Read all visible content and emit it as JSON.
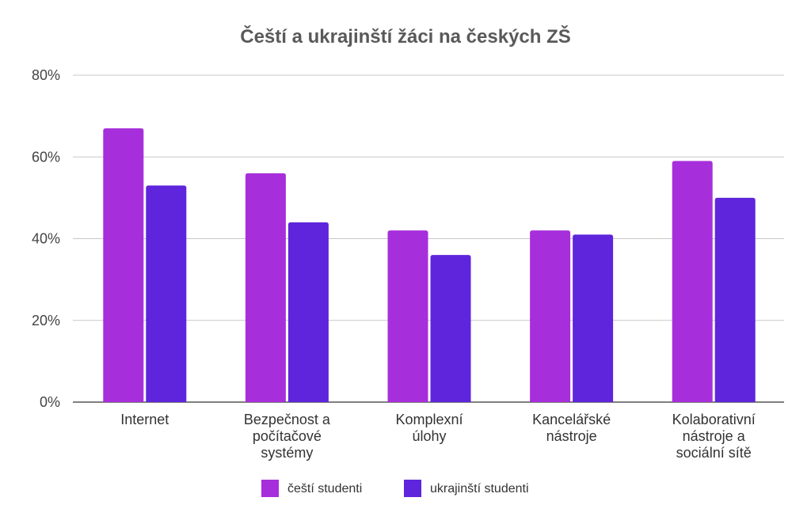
{
  "chart_data": {
    "type": "bar",
    "title": "Čeští a ukrajinští žáci na českých ZŠ",
    "xlabel": "",
    "ylabel": "",
    "ylim": [
      0,
      80
    ],
    "yticks": [
      "0%",
      "20%",
      "40%",
      "60%",
      "80%"
    ],
    "ytick_values": [
      0,
      20,
      40,
      60,
      80
    ],
    "grid": true,
    "legend_position": "bottom",
    "categories": [
      "Internet",
      "Bezpečnost a počítačové systémy",
      "Komplexní úlohy",
      "Kancelářské nástroje",
      "Kolaborativní nástroje a sociální sítě"
    ],
    "category_lines": [
      [
        "Internet"
      ],
      [
        "Bezpečnost a",
        "počítačové",
        "systémy"
      ],
      [
        "Komplexní",
        "úlohy"
      ],
      [
        "Kancelářské",
        "nástroje"
      ],
      [
        "Kolaborativní",
        "nástroje a",
        "sociální sítě"
      ]
    ],
    "series": [
      {
        "name": "čeští studenti",
        "color": "#a72fdb",
        "values": [
          67,
          56,
          42,
          42,
          59
        ]
      },
      {
        "name": "ukrajinští studenti",
        "color": "#5e25dc",
        "values": [
          53,
          44,
          36,
          41,
          50
        ]
      }
    ]
  }
}
